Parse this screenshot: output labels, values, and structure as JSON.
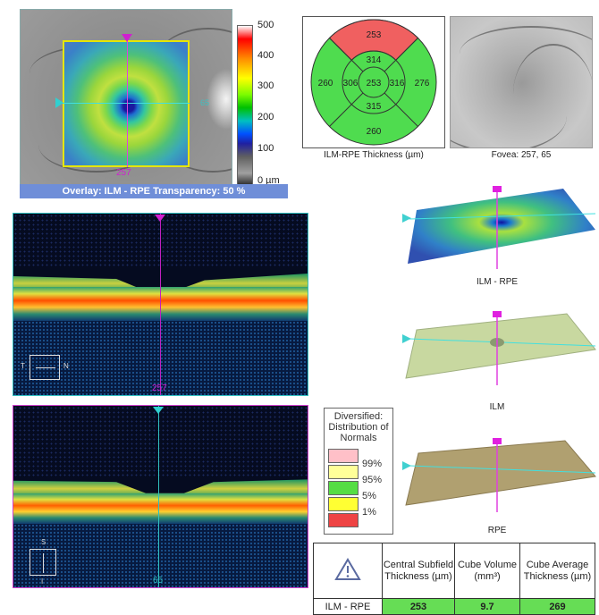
{
  "fundus": {
    "scan_position": "257",
    "right_label": "65",
    "colorbar_labels": [
      "500",
      "400",
      "300",
      "200",
      "100",
      "0 µm"
    ],
    "overlay_caption": "Overlay: ILM - RPE  Transparency: 50 %"
  },
  "etdrs": {
    "caption": "ILM-RPE Thickness (µm)",
    "values": {
      "superior_outer": "253",
      "superior_inner": "314",
      "nasal_outer": "260",
      "nasal_inner": "306",
      "center": "253",
      "temporal_inner": "316",
      "temporal_outer": "276",
      "inferior_inner": "315",
      "inferior_outer": "260"
    },
    "colors": {
      "normal": "#4fdc4f",
      "high": "#f06060"
    }
  },
  "fovea": {
    "caption": "Fovea: 257, 65"
  },
  "bscan1": {
    "label": "257",
    "orientation": [
      "T",
      "N"
    ]
  },
  "bscan2": {
    "label": "65",
    "orientation": [
      "S",
      "I"
    ]
  },
  "surfaces": {
    "ilm_rpe_label": "ILM - RPE",
    "ilm_label": "ILM",
    "rpe_label": "RPE"
  },
  "legend": {
    "title": "Diversified: Distribution of Normals",
    "entries": [
      {
        "label": "99%",
        "color": "#ffc0c8"
      },
      {
        "label": "95%",
        "color": "#ffff99"
      },
      {
        "label": "5%",
        "color": "#55dd44"
      },
      {
        "label": "1%",
        "color": "#ffff33"
      },
      {
        "label": "",
        "color": "#ee4444"
      }
    ]
  },
  "table": {
    "headers": [
      "Central Subfield Thickness (µm)",
      "Cube Volume (mm³)",
      "Cube Average Thickness (µm)"
    ],
    "row_label": "ILM - RPE",
    "values": [
      "253",
      "9.7",
      "269"
    ]
  }
}
